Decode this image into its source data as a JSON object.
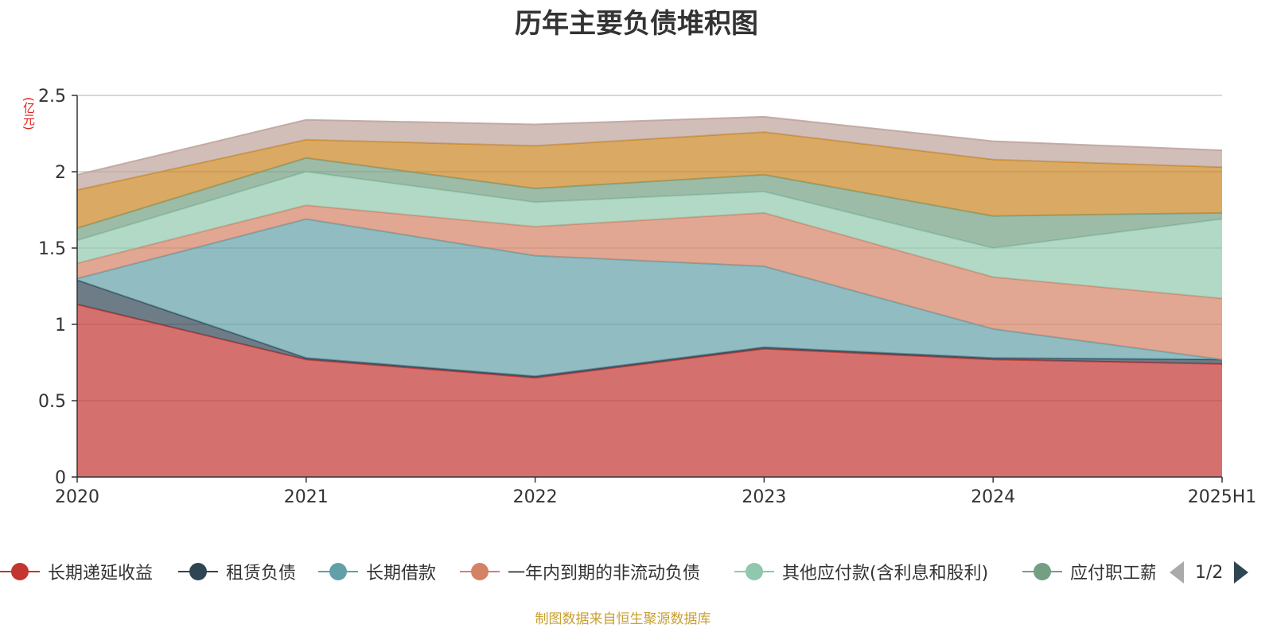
{
  "chart_data": {
    "type": "area",
    "stacked": true,
    "title": "历年主要负债堆积图",
    "ylabel": "(亿元)",
    "xlabel": "",
    "categories": [
      "2020",
      "2021",
      "2022",
      "2023",
      "2024",
      "2025H1"
    ],
    "ylim": [
      0,
      2.5
    ],
    "yticks": [
      "0",
      "0.5",
      "1",
      "1.5",
      "2",
      "2.5"
    ],
    "grid": true,
    "series": [
      {
        "name": "长期递延收益",
        "color": "#c23531",
        "values": [
          1.13,
          0.77,
          0.65,
          0.84,
          0.77,
          0.74
        ]
      },
      {
        "name": "租赁负债",
        "color": "#2f4554",
        "values": [
          0.16,
          0.01,
          0.01,
          0.01,
          0.01,
          0.03
        ]
      },
      {
        "name": "长期借款",
        "color": "#61a0a8",
        "values": [
          0.01,
          0.91,
          0.79,
          0.53,
          0.19,
          0.0
        ]
      },
      {
        "name": "一年内到期的非流动负债",
        "color": "#d48265",
        "values": [
          0.1,
          0.09,
          0.19,
          0.35,
          0.34,
          0.4
        ]
      },
      {
        "name": "其他应付款(含利息和股利)",
        "color": "#91c7ae",
        "values": [
          0.15,
          0.22,
          0.16,
          0.14,
          0.19,
          0.52
        ]
      },
      {
        "name": "应付职工薪酬",
        "color": "#749f83",
        "values": [
          0.08,
          0.09,
          0.09,
          0.11,
          0.21,
          0.04
        ]
      },
      {
        "name": "",
        "color": "#ca8622",
        "values": [
          0.25,
          0.12,
          0.28,
          0.28,
          0.37,
          0.3
        ]
      },
      {
        "name": "",
        "color": "#bda29a",
        "values": [
          0.1,
          0.13,
          0.14,
          0.1,
          0.12,
          0.11
        ]
      }
    ]
  },
  "legend": {
    "pager_text": "1/2",
    "pager_prev_icon": "triangle-left-icon",
    "pager_next_icon": "triangle-right-icon"
  },
  "source_note": "制图数据来自恒生聚源数据库"
}
